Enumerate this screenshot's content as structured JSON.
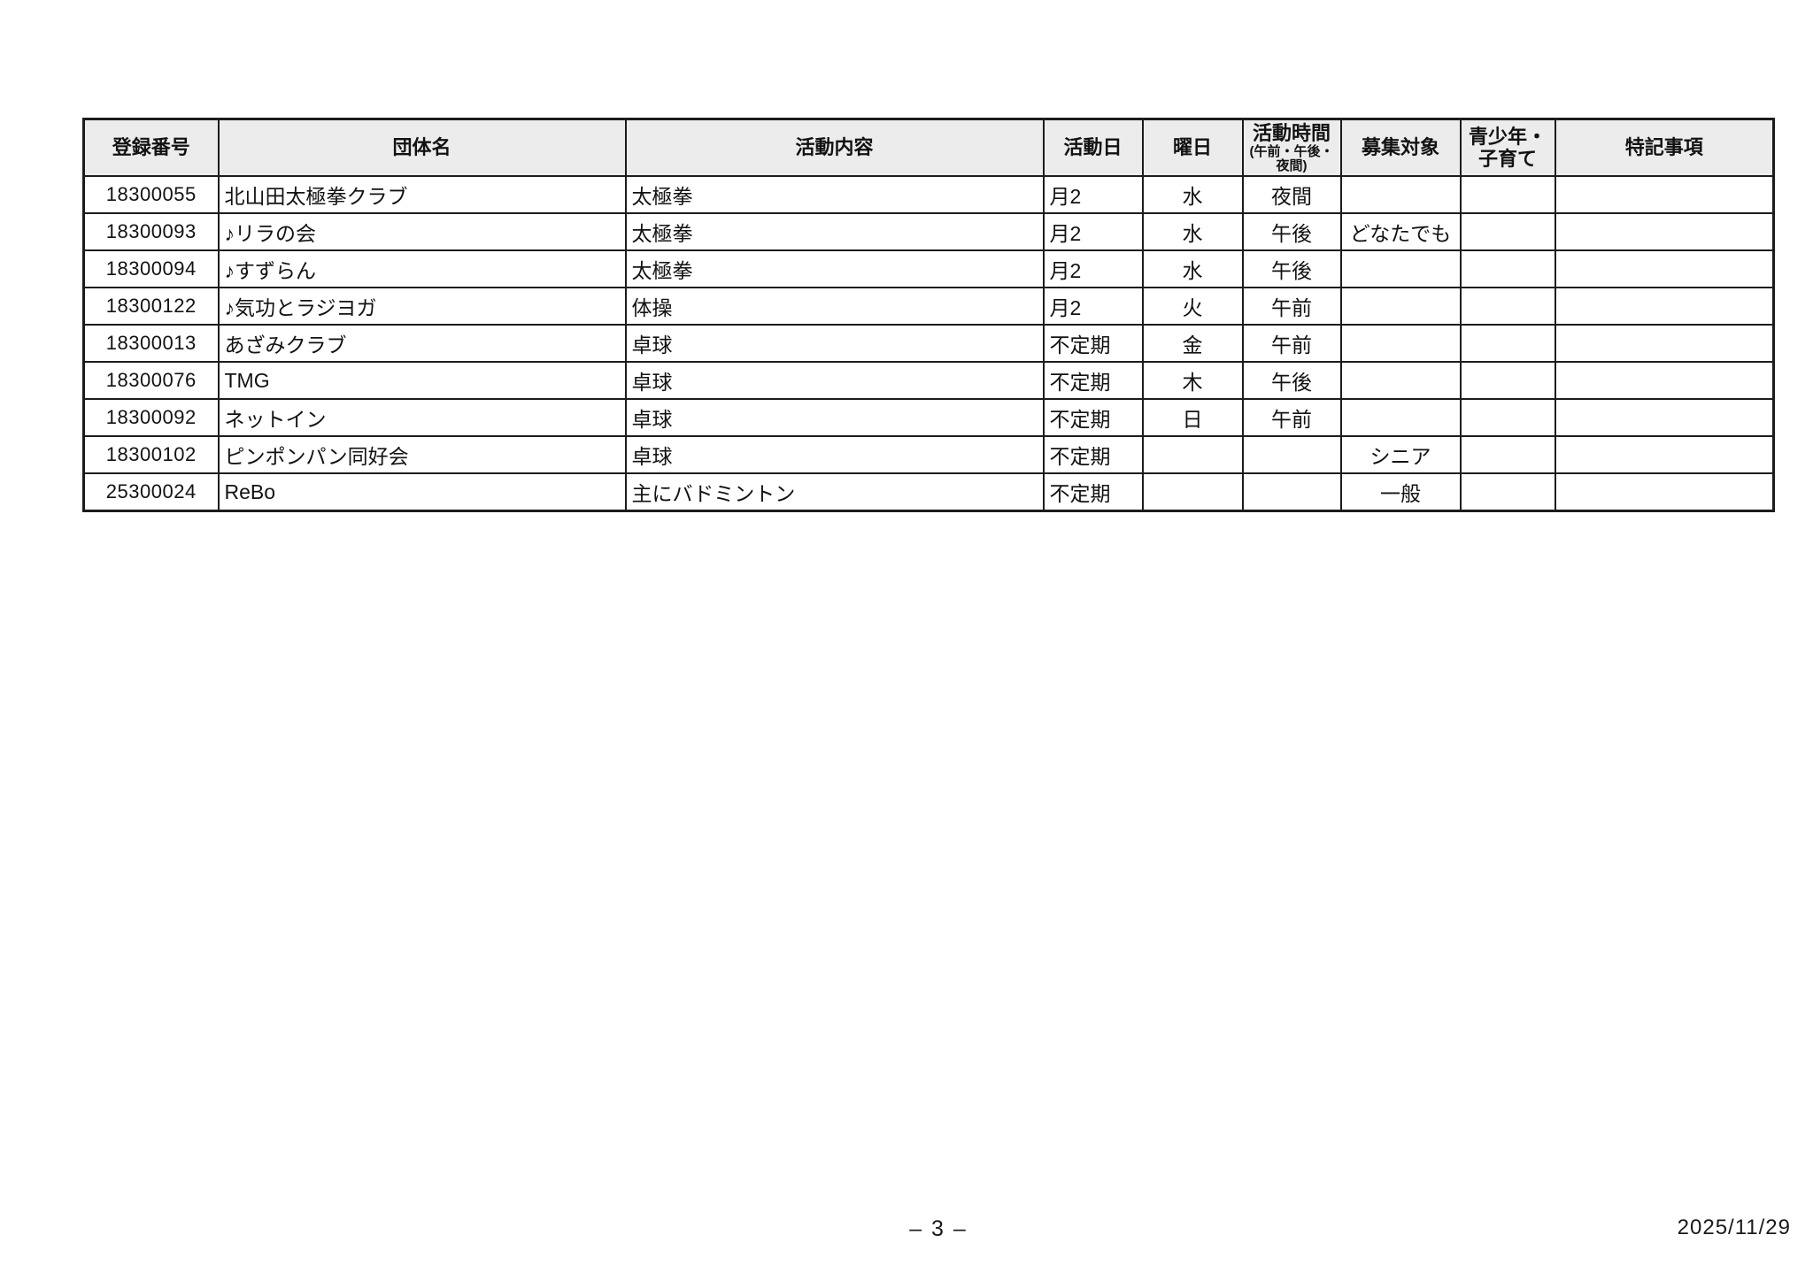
{
  "table": {
    "columns": [
      {
        "id": "registration-number",
        "label": "登録番号",
        "align": "center"
      },
      {
        "id": "group-name",
        "label": "団体名",
        "align": "left"
      },
      {
        "id": "activity-content",
        "label": "活動内容",
        "align": "left"
      },
      {
        "id": "activity-day",
        "label": "活動日",
        "align": "left"
      },
      {
        "id": "weekday",
        "label": "曜日",
        "align": "center"
      },
      {
        "id": "activity-time",
        "label": "活動時間",
        "sub": "(午前・午後・夜間)",
        "align": "center"
      },
      {
        "id": "recruitment-target",
        "label": "募集対象",
        "align": "center"
      },
      {
        "id": "youth-childcare",
        "label": "青少年・子育て",
        "align": "center"
      },
      {
        "id": "special-notes",
        "label": "特記事項",
        "align": "left"
      }
    ],
    "rows": [
      [
        "18300055",
        "北山田太極拳クラブ",
        "太極拳",
        "月2",
        "水",
        "夜間",
        "",
        "",
        ""
      ],
      [
        "18300093",
        "♪リラの会",
        "太極拳",
        "月2",
        "水",
        "午後",
        "どなたでも",
        "",
        ""
      ],
      [
        "18300094",
        "♪すずらん",
        "太極拳",
        "月2",
        "水",
        "午後",
        "",
        "",
        ""
      ],
      [
        "18300122",
        "♪気功とラジヨガ",
        "体操",
        "月2",
        "火",
        "午前",
        "",
        "",
        ""
      ],
      [
        "18300013",
        "あざみクラブ",
        "卓球",
        "不定期",
        "金",
        "午前",
        "",
        "",
        ""
      ],
      [
        "18300076",
        "TMG",
        "卓球",
        "不定期",
        "木",
        "午後",
        "",
        "",
        ""
      ],
      [
        "18300092",
        "ネットイン",
        "卓球",
        "不定期",
        "日",
        "午前",
        "",
        "",
        ""
      ],
      [
        "18300102",
        "ピンポンパン同好会",
        "卓球",
        "不定期",
        "",
        "",
        "シニア",
        "",
        ""
      ],
      [
        "25300024",
        "ReBo",
        "主にバドミントン",
        "不定期",
        "",
        "",
        "一般",
        "",
        ""
      ]
    ]
  },
  "footer": {
    "page_number": "– 3 –",
    "date": "2025/11/29"
  }
}
